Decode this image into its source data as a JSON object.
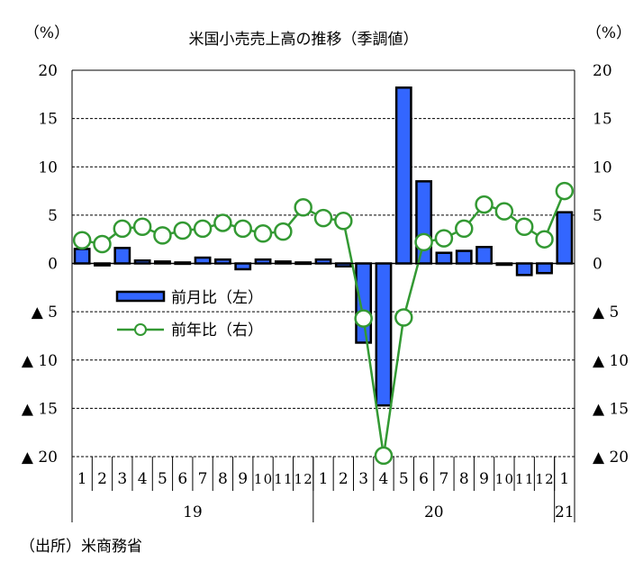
{
  "chart_data": {
    "type": "bar+line",
    "title": "米国小売売上高の推移（季調値）",
    "left_unit": "（%）",
    "right_unit": "（%）",
    "source": "（出所）米商務省",
    "ylim": [
      -20,
      20
    ],
    "y_ticks": [
      20,
      15,
      10,
      5,
      0,
      -5,
      -10,
      -15,
      -20
    ],
    "y_tick_labels": [
      "20",
      "15",
      "10",
      "5",
      "0",
      "▲ 5",
      "▲ 10",
      "▲ 15",
      "▲ 20"
    ],
    "grid": "horizontal dashed",
    "months": [
      "1",
      "2",
      "3",
      "4",
      "5",
      "6",
      "7",
      "8",
      "9",
      "10",
      "11",
      "12",
      "1",
      "2",
      "3",
      "4",
      "5",
      "6",
      "7",
      "8",
      "9",
      "10",
      "11",
      "12",
      "1"
    ],
    "years": [
      {
        "label": "19",
        "months": 12
      },
      {
        "label": "20",
        "months": 12
      },
      {
        "label": "21",
        "months": 1
      }
    ],
    "legend_position": "center-left",
    "series": [
      {
        "name": "前月比（左）",
        "type": "bar",
        "color": "#3366ff",
        "values": [
          1.5,
          -0.2,
          1.6,
          0.3,
          0.2,
          0.1,
          0.6,
          0.4,
          -0.6,
          0.4,
          0.2,
          0.1,
          0.4,
          -0.3,
          -8.2,
          -14.7,
          18.2,
          8.5,
          1.1,
          1.3,
          1.7,
          -0.1,
          -1.2,
          -1.0,
          5.3
        ]
      },
      {
        "name": "前年比（右）",
        "type": "line",
        "color": "#339933",
        "values": [
          2.4,
          2.0,
          3.6,
          3.8,
          2.9,
          3.4,
          3.6,
          4.2,
          3.6,
          3.1,
          3.3,
          5.8,
          4.7,
          4.4,
          -5.7,
          -19.9,
          -5.6,
          2.2,
          2.6,
          3.6,
          6.1,
          5.4,
          3.8,
          2.5,
          7.5
        ]
      }
    ]
  }
}
